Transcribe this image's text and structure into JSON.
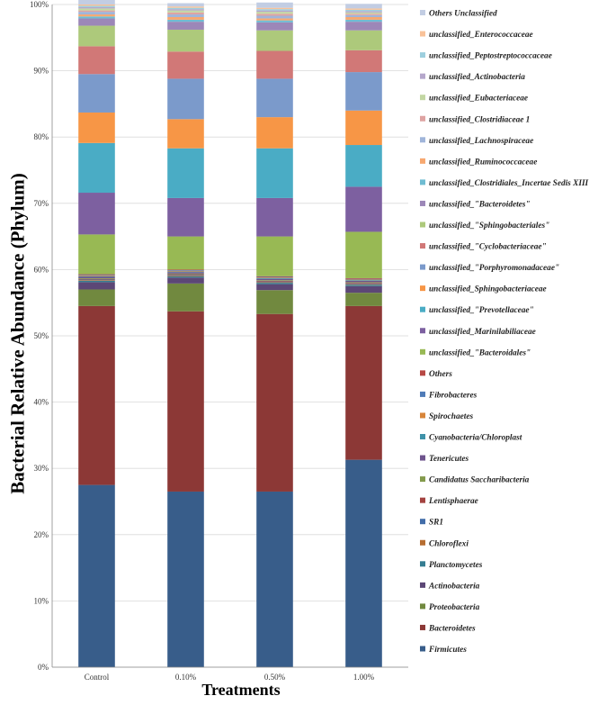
{
  "chart_data": {
    "type": "bar",
    "stacked": true,
    "title": "",
    "xlabel": "Treatments",
    "ylabel": "Bacterial Relative Abundance (Phylum)",
    "ylim": [
      0,
      100
    ],
    "yticks": [
      "0%",
      "10%",
      "20%",
      "30%",
      "40%",
      "50%",
      "60%",
      "70%",
      "80%",
      "90%",
      "100%"
    ],
    "categories": [
      "Control",
      "0.10%",
      "0.50%",
      "1.00%"
    ],
    "legend_position": "right",
    "series": [
      {
        "name": "Firmicutes",
        "color": "#385d8a",
        "values": [
          27.5,
          26.5,
          26.5,
          31.3
        ]
      },
      {
        "name": "Bacteroidetes",
        "color": "#8c3836",
        "values": [
          27.0,
          27.2,
          26.8,
          23.2
        ]
      },
      {
        "name": "Proteobacteria",
        "color": "#71893f",
        "values": [
          2.5,
          4.2,
          3.6,
          2.0
        ]
      },
      {
        "name": "Actinobacteria",
        "color": "#5c4776",
        "values": [
          1.1,
          0.9,
          0.9,
          1.0
        ]
      },
      {
        "name": "Planctomycetes",
        "color": "#357d91",
        "values": [
          0.2,
          0.2,
          0.2,
          0.2
        ]
      },
      {
        "name": "Chloroflexi",
        "color": "#b66d31",
        "values": [
          0.1,
          0.1,
          0.1,
          0.1
        ]
      },
      {
        "name": "SR1",
        "color": "#426da9",
        "values": [
          0.1,
          0.1,
          0.1,
          0.1
        ]
      },
      {
        "name": "Lentisphaerae",
        "color": "#a44340",
        "values": [
          0.1,
          0.1,
          0.1,
          0.1
        ]
      },
      {
        "name": "Candidatus Saccharibacteria",
        "color": "#849b4d",
        "values": [
          0.1,
          0.1,
          0.1,
          0.1
        ]
      },
      {
        "name": "Tenericutes",
        "color": "#6e548d",
        "values": [
          0.2,
          0.2,
          0.2,
          0.2
        ]
      },
      {
        "name": "Cyanobacteria/Chloroplast",
        "color": "#3f92a9",
        "values": [
          0.1,
          0.1,
          0.1,
          0.1
        ]
      },
      {
        "name": "Spirochaetes",
        "color": "#d88539",
        "values": [
          0.1,
          0.1,
          0.1,
          0.1
        ]
      },
      {
        "name": "Fibrobacteres",
        "color": "#4f7bb7",
        "values": [
          0.1,
          0.1,
          0.1,
          0.1
        ]
      },
      {
        "name": "Others",
        "color": "#b74844",
        "values": [
          0.1,
          0.1,
          0.1,
          0.1
        ]
      },
      {
        "name": "unclassified_\"Bacteroidales\"",
        "color": "#98b954",
        "values": [
          6.0,
          5.0,
          6.0,
          7.0
        ]
      },
      {
        "name": "unclassified_Marinilabiliaceae",
        "color": "#7d60a0",
        "values": [
          6.3,
          5.8,
          5.8,
          6.8
        ]
      },
      {
        "name": "unclassified_\"Prevotellaceae\"",
        "color": "#4aacc5",
        "values": [
          7.5,
          7.5,
          7.5,
          6.3
        ]
      },
      {
        "name": "unclassified_Sphingobacteriaceae",
        "color": "#f79646",
        "values": [
          4.6,
          4.4,
          4.7,
          5.2
        ]
      },
      {
        "name": "unclassified_\"Porphyromonadaceae\"",
        "color": "#7b9acb",
        "values": [
          5.8,
          6.1,
          5.8,
          5.8
        ]
      },
      {
        "name": "unclassified_\"Cyclobacteriaceae\"",
        "color": "#d17877",
        "values": [
          4.2,
          4.1,
          4.2,
          3.3
        ]
      },
      {
        "name": "unclassified_\"Sphingobacteriales\"",
        "color": "#adc97b",
        "values": [
          3.1,
          3.3,
          3.1,
          3.0
        ]
      },
      {
        "name": "unclassified_\"Bacteroidetes\"",
        "color": "#9c87b8",
        "values": [
          1.1,
          1.2,
          1.2,
          1.3
        ]
      },
      {
        "name": "unclassified_Clostridiales_Incertae Sedis XIII",
        "color": "#6fbcd2",
        "values": [
          0.3,
          0.3,
          0.3,
          0.3
        ]
      },
      {
        "name": "unclassified_Ruminococcaceae",
        "color": "#f7a870",
        "values": [
          0.3,
          0.4,
          0.3,
          0.4
        ]
      },
      {
        "name": "unclassified_Lachnospiraceae",
        "color": "#a0b5da",
        "values": [
          0.4,
          0.4,
          0.4,
          0.3
        ]
      },
      {
        "name": "unclassified_Clostridiaceae 1",
        "color": "#dea3a2",
        "values": [
          0.2,
          0.3,
          0.3,
          0.2
        ]
      },
      {
        "name": "unclassified_Eubacteriaceae",
        "color": "#c3d7a3",
        "values": [
          0.3,
          0.3,
          0.3,
          0.2
        ]
      },
      {
        "name": "unclassified_Actinobacteria",
        "color": "#b5a7cb",
        "values": [
          0.2,
          0.2,
          0.2,
          0.2
        ]
      },
      {
        "name": "unclassified_Peptostreptococcaceae",
        "color": "#9dcfde",
        "values": [
          0.2,
          0.2,
          0.2,
          0.2
        ]
      },
      {
        "name": "unclassified_Enterococcaceae",
        "color": "#f9c299",
        "values": [
          0.2,
          0.2,
          0.2,
          0.2
        ]
      },
      {
        "name": "Others Unclassified",
        "color": "#c2cde3",
        "values": [
          0.9,
          0.5,
          0.8,
          0.7
        ]
      }
    ]
  }
}
